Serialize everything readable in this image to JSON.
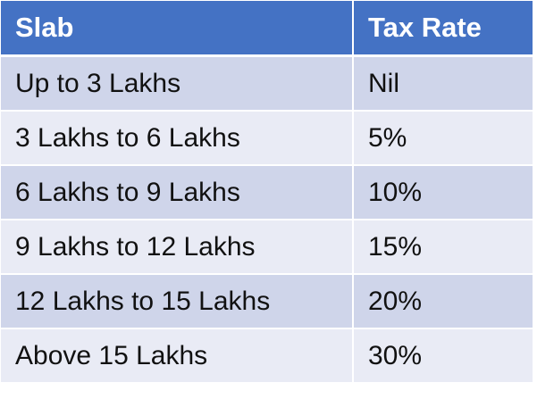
{
  "table": {
    "headers": {
      "slab": "Slab",
      "rate": "Tax Rate"
    },
    "rows": [
      {
        "slab": "Up to 3 Lakhs",
        "rate": "Nil"
      },
      {
        "slab": "3 Lakhs to 6 Lakhs",
        "rate": "5%"
      },
      {
        "slab": "6 Lakhs to 9 Lakhs",
        "rate": "10%"
      },
      {
        "slab": "9 Lakhs to 12 Lakhs",
        "rate": "15%"
      },
      {
        "slab": "12 Lakhs to 15 Lakhs",
        "rate": "20%"
      },
      {
        "slab": "Above 15 Lakhs",
        "rate": "30%"
      }
    ]
  },
  "colors": {
    "header_background": "#4472c4",
    "header_text": "#ffffff",
    "row_band_dark": "#cfd5ea",
    "row_band_light": "#e9ebf5",
    "cell_text": "#111111"
  }
}
